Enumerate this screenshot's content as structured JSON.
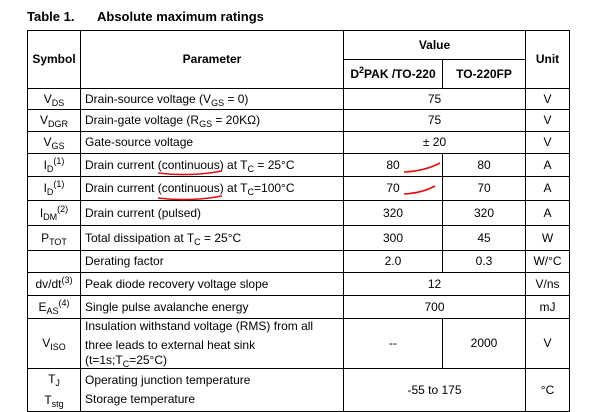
{
  "title": {
    "label": "Table 1.",
    "text": "Absolute maximum ratings"
  },
  "header": {
    "symbol": "Symbol",
    "parameter": "Parameter",
    "value": "Value",
    "unit": "Unit",
    "subheaders": [
      [
        {
          "text": "D"
        },
        {
          "sup": "2"
        },
        {
          "text": "PAK /TO-220"
        }
      ],
      [
        {
          "text": "TO-220FP"
        }
      ]
    ]
  },
  "rows": [
    {
      "symbol": [
        [
          {
            "text": "V"
          },
          {
            "sub": "DS"
          }
        ]
      ],
      "parameter": [
        [
          {
            "text": "Drain-source voltage (V"
          },
          {
            "sub": "GS"
          },
          {
            "text": " = 0)"
          }
        ]
      ],
      "value": [
        "75"
      ],
      "unit": "V"
    },
    {
      "symbol": [
        [
          {
            "text": "V"
          },
          {
            "sub": "DGR"
          }
        ]
      ],
      "parameter": [
        [
          {
            "text": "Drain-gate voltage (R"
          },
          {
            "sub": "GS"
          },
          {
            "text": " = 20KΩ)"
          }
        ]
      ],
      "value": [
        "75"
      ],
      "unit": "V"
    },
    {
      "symbol": [
        [
          {
            "text": "V"
          },
          {
            "sub": "GS"
          }
        ]
      ],
      "parameter": [
        [
          {
            "text": "Gate-source voltage"
          }
        ]
      ],
      "value": [
        "± 20"
      ],
      "unit": "V"
    },
    {
      "symbol": [
        [
          {
            "text": "I"
          },
          {
            "sub": "D"
          },
          {
            "sup": "(1)"
          }
        ]
      ],
      "parameter": [
        [
          {
            "text": "Drain current (continuous) at T"
          },
          {
            "sub": "C"
          },
          {
            "text": " = 25°C"
          }
        ]
      ],
      "value": [
        "80",
        "80"
      ],
      "unit": "A"
    },
    {
      "symbol": [
        [
          {
            "text": "I"
          },
          {
            "sub": "D"
          },
          {
            "sup": "(1)"
          }
        ]
      ],
      "parameter": [
        [
          {
            "text": "Drain current (continuous) at T"
          },
          {
            "sub": "C"
          },
          {
            "text": "=100°C"
          }
        ]
      ],
      "value": [
        "70",
        "70"
      ],
      "unit": "A"
    },
    {
      "symbol": [
        [
          {
            "text": "I"
          },
          {
            "sub": "DM"
          },
          {
            "sup": "(2)"
          }
        ]
      ],
      "parameter": [
        [
          {
            "text": "Drain current (pulsed)"
          }
        ]
      ],
      "value": [
        "320",
        "320"
      ],
      "unit": "A"
    },
    {
      "symbol": [
        [
          {
            "text": "P"
          },
          {
            "sub": "TOT"
          }
        ]
      ],
      "parameter": [
        [
          {
            "text": "Total dissipation at T"
          },
          {
            "sub": "C"
          },
          {
            "text": " = 25°C"
          }
        ]
      ],
      "value": [
        "300",
        "45"
      ],
      "unit": "W"
    },
    {
      "symbol": [],
      "parameter": [
        [
          {
            "text": "Derating factor"
          }
        ]
      ],
      "value": [
        "2.0",
        "0.3"
      ],
      "unit": "W/°C"
    },
    {
      "symbol": [
        [
          {
            "text": "dv/dt"
          },
          {
            "sup": "(3)"
          }
        ]
      ],
      "parameter": [
        [
          {
            "text": "Peak diode recovery voltage slope"
          }
        ]
      ],
      "value": [
        "12"
      ],
      "unit": "V/ns"
    },
    {
      "symbol": [
        [
          {
            "text": "E"
          },
          {
            "sub": "AS"
          },
          {
            "sup": "(4)"
          }
        ]
      ],
      "parameter": [
        [
          {
            "text": "Single pulse avalanche energy"
          }
        ]
      ],
      "value": [
        "700"
      ],
      "unit": "mJ"
    },
    {
      "symbol": [
        [
          {
            "text": "V"
          },
          {
            "sub": "ISO"
          }
        ]
      ],
      "parameter": [
        [
          {
            "text": "Insulation withstand voltage (RMS) from all"
          }
        ],
        [
          {
            "text": "three leads to external heat sink (t=1s;T"
          },
          {
            "sub": "C"
          },
          {
            "text": "=25°C)"
          }
        ]
      ],
      "value": [
        "--",
        "2000"
      ],
      "unit": "V"
    },
    {
      "symbol": [
        [
          {
            "text": "T"
          },
          {
            "sub": "J"
          }
        ],
        [
          {
            "text": "T"
          },
          {
            "sub": "stg"
          }
        ]
      ],
      "parameter": [
        [
          {
            "text": "Operating junction temperature"
          }
        ],
        [
          {
            "text": "Storage temperature"
          }
        ]
      ],
      "value": [
        "-55 to 175"
      ],
      "unit": "°C"
    }
  ]
}
